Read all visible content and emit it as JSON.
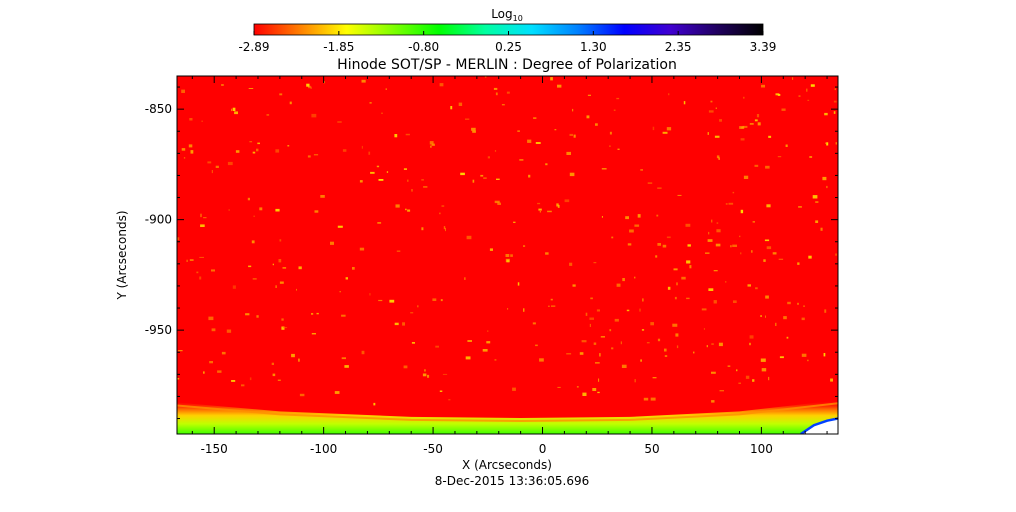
{
  "colorbar": {
    "title": "Log",
    "title_subscript": "10",
    "ticks": [
      "-2.89",
      "-1.85",
      "-0.80",
      "0.25",
      "1.30",
      "2.35",
      "3.39"
    ]
  },
  "chart_data": {
    "type": "heatmap",
    "title": "Hinode SOT/SP - MERLIN : Degree of Polarization",
    "xlabel": "X (Arcseconds)",
    "ylabel": "Y (Arcseconds)",
    "xlim": [
      -167,
      135
    ],
    "ylim": [
      -997,
      -835
    ],
    "xticks": [
      -150,
      -100,
      -50,
      0,
      50,
      100
    ],
    "yticks": [
      -850,
      -900,
      -950
    ],
    "color_scale": "log10",
    "color_range": [
      -2.89,
      3.39
    ],
    "colormap": [
      "#ff0000",
      "#ff8000",
      "#ffff00",
      "#80ff00",
      "#00ff00",
      "#00ffa0",
      "#00e0ff",
      "#0080ff",
      "#0000ff",
      "#4000d0",
      "#200060",
      "#000000"
    ],
    "background_value_color": "#ff0000",
    "limb_region_color": "#ffffff",
    "limb_curve": [
      [
        -167,
        -990
      ],
      [
        -120,
        -994
      ],
      [
        -60,
        -996.5
      ],
      [
        -10,
        -997
      ],
      [
        40,
        -996.5
      ],
      [
        90,
        -994
      ],
      [
        135,
        -989
      ]
    ],
    "off_disk_corner": [
      [
        118,
        -997
      ],
      [
        124,
        -993
      ],
      [
        130,
        -991
      ],
      [
        135,
        -990
      ]
    ],
    "grid": false,
    "timestamp": "8-Dec-2015 13:36:05.696"
  }
}
